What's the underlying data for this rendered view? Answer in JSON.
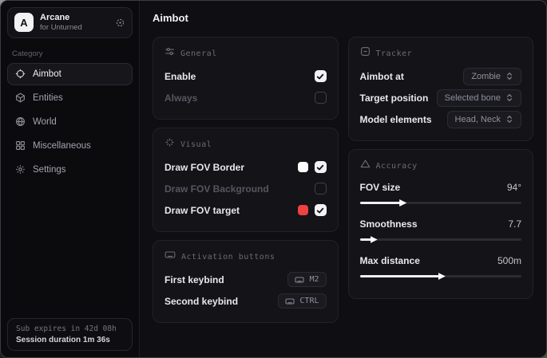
{
  "sidebar": {
    "brand": {
      "initial": "A",
      "title": "Arcane",
      "subtitle": "for Unturned"
    },
    "category_label": "Category",
    "items": [
      {
        "label": "Aimbot",
        "icon": "crosshair-icon",
        "active": true
      },
      {
        "label": "Entities",
        "icon": "entities-icon",
        "active": false
      },
      {
        "label": "World",
        "icon": "globe-icon",
        "active": false
      },
      {
        "label": "Miscellaneous",
        "icon": "grid-icon",
        "active": false
      },
      {
        "label": "Settings",
        "icon": "gear-icon",
        "active": false
      }
    ],
    "footer": {
      "line1": "Sub expires in 42d 08h",
      "line2": "Session duration 1m 36s"
    }
  },
  "main": {
    "title": "Aimbot",
    "cards": {
      "general": {
        "title": "General",
        "rows": [
          {
            "label": "Enable",
            "checked": true,
            "disabled": false
          },
          {
            "label": "Always",
            "checked": false,
            "disabled": true
          }
        ]
      },
      "visual": {
        "title": "Visual",
        "rows": [
          {
            "label": "Draw FOV Border",
            "swatch": "#ffffff",
            "checked": true,
            "disabled": false
          },
          {
            "label": "Draw FOV Background",
            "checked": false,
            "disabled": true
          },
          {
            "label": "Draw FOV target",
            "swatch": "#ee4141",
            "checked": true,
            "disabled": false
          }
        ]
      },
      "activation": {
        "title": "Activation buttons",
        "rows": [
          {
            "label": "First keybind",
            "key": "M2"
          },
          {
            "label": "Second keybind",
            "key": "CTRL"
          }
        ]
      },
      "tracker": {
        "title": "Tracker",
        "rows": [
          {
            "label": "Aimbot at",
            "value": "Zombie"
          },
          {
            "label": "Target position",
            "value": "Selected bone"
          },
          {
            "label": "Model elements",
            "value": "Head, Neck"
          }
        ]
      },
      "accuracy": {
        "title": "Accuracy",
        "sliders": [
          {
            "label": "FOV size",
            "value": "94°",
            "percent": 26
          },
          {
            "label": "Smoothness",
            "value": "7.7",
            "percent": 8
          },
          {
            "label": "Max distance",
            "value": "500m",
            "percent": 50
          }
        ]
      }
    }
  },
  "colors": {
    "accent_red": "#ee4141",
    "checkbox_checked": "#f2f2f4",
    "card_bg": "#131318",
    "window_bg": "#0f0f12"
  }
}
